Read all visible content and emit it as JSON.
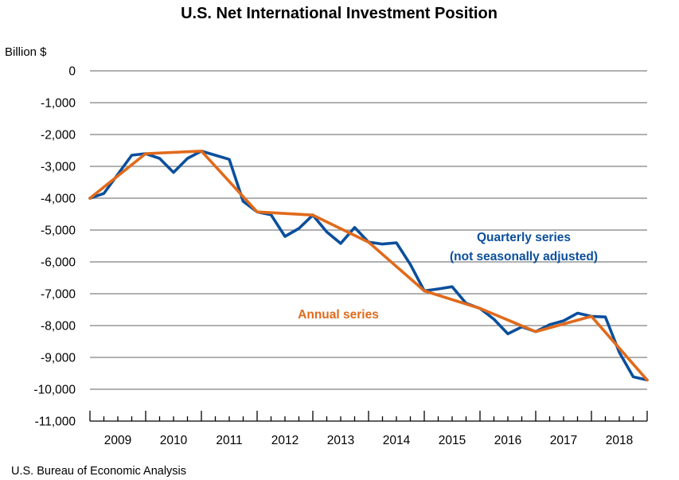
{
  "chart_data": {
    "type": "line",
    "title": "U.S. Net International Investment Position",
    "ylabel": "Billion $",
    "xlabel": "",
    "ylim": [
      -11000,
      0
    ],
    "yticks": [
      0,
      -1000,
      -2000,
      -3000,
      -4000,
      -5000,
      -6000,
      -7000,
      -8000,
      -9000,
      -10000,
      -11000
    ],
    "ytick_labels": [
      "0",
      "-1,000",
      "-2,000",
      "-3,000",
      "-4,000",
      "-5,000",
      "-6,000",
      "-7,000",
      "-8,000",
      "-9,000",
      "-10,000",
      "-11,000"
    ],
    "xtick_labels": [
      "2009",
      "2010",
      "2011",
      "2012",
      "2013",
      "2014",
      "2015",
      "2016",
      "2017",
      "2018"
    ],
    "grid": true,
    "legend": "none (inline annotations)",
    "series": [
      {
        "name": "Quarterly series (not seasonally adjusted)",
        "color": "#0B4F9C",
        "x": [
          "2008Q4",
          "2009Q1",
          "2009Q2",
          "2009Q3",
          "2009Q4",
          "2010Q1",
          "2010Q2",
          "2010Q3",
          "2010Q4",
          "2011Q1",
          "2011Q2",
          "2011Q3",
          "2011Q4",
          "2012Q1",
          "2012Q2",
          "2012Q3",
          "2012Q4",
          "2013Q1",
          "2013Q2",
          "2013Q3",
          "2013Q4",
          "2014Q1",
          "2014Q2",
          "2014Q3",
          "2014Q4",
          "2015Q1",
          "2015Q2",
          "2015Q3",
          "2015Q4",
          "2016Q1",
          "2016Q2",
          "2016Q3",
          "2016Q4",
          "2017Q1",
          "2017Q2",
          "2017Q3",
          "2017Q4",
          "2018Q1",
          "2018Q2",
          "2018Q3",
          "2018Q4"
        ],
        "values": [
          -4000,
          -3850,
          -3250,
          -2650,
          -2600,
          -2750,
          -3190,
          -2750,
          -2520,
          -2650,
          -2780,
          -4100,
          -4430,
          -4520,
          -5200,
          -4950,
          -4530,
          -5060,
          -5420,
          -4920,
          -5380,
          -5440,
          -5400,
          -6080,
          -6910,
          -6850,
          -6780,
          -7300,
          -7460,
          -7800,
          -8260,
          -8040,
          -8190,
          -7970,
          -7850,
          -7610,
          -7710,
          -7730,
          -8840,
          -9610,
          -9710
        ]
      },
      {
        "name": "Annual series",
        "color": "#E06A1B",
        "x": [
          "2008Q4",
          "2009Q4",
          "2010Q4",
          "2011Q4",
          "2012Q4",
          "2013Q4",
          "2014Q4",
          "2015Q4",
          "2016Q4",
          "2017Q4",
          "2018Q4"
        ],
        "values": [
          -4000,
          -2600,
          -2520,
          -4430,
          -4530,
          -5380,
          -6910,
          -7460,
          -8190,
          -7710,
          -9710
        ]
      }
    ],
    "annotations": [
      {
        "text": "Quarterly series",
        "series": 0
      },
      {
        "text": "(not seasonally adjusted)",
        "series": 0
      },
      {
        "text": "Annual series",
        "series": 1
      }
    ]
  },
  "source": "U.S. Bureau of Economic Analysis"
}
